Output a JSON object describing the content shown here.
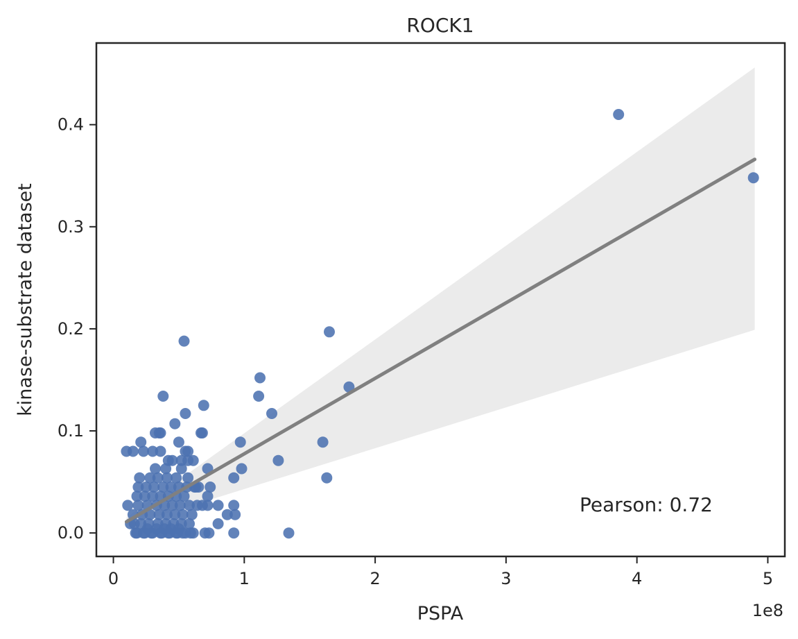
{
  "chart_data": {
    "type": "scatter",
    "title": "ROCK1",
    "xlabel": "PSPA",
    "ylabel": "kinase-substrate dataset",
    "x_offset_label": "1e8",
    "annotation": "Pearson: 0.72",
    "xlim": [
      -0.13,
      5.13
    ],
    "ylim": [
      -0.023,
      0.48
    ],
    "xticks": [
      0,
      1,
      2,
      3,
      4,
      5
    ],
    "yticks": [
      0.0,
      0.1,
      0.2,
      0.3,
      0.4
    ],
    "ytick_labels": [
      "0.0",
      "0.1",
      "0.2",
      "0.3",
      "0.4"
    ],
    "grid": false,
    "colors": {
      "points": "#4c72b0",
      "fit_line": "#808080",
      "band": "#ebebeb",
      "axes": "#262626"
    },
    "regression": {
      "x": [
        0.1,
        4.9
      ],
      "y": [
        0.011,
        0.366
      ],
      "ci_upper_at_max": 0.456,
      "ci_lower_at_max": 0.199
    },
    "series": [
      {
        "x": [
          3.86,
          4.89,
          1.65,
          1.8,
          0.54,
          1.12,
          1.11,
          1.21,
          1.6,
          1.63,
          0.97,
          1.26,
          0.98,
          0.92,
          1.34,
          0.93,
          0.38,
          0.55,
          0.69,
          0.47,
          0.35,
          0.36,
          0.32,
          0.67,
          0.68,
          0.5,
          0.21,
          0.1,
          0.15,
          0.23,
          0.3,
          0.36,
          0.55,
          0.57,
          0.61,
          0.42,
          0.45,
          0.52,
          0.57,
          0.72,
          0.32,
          0.4,
          0.52,
          0.62,
          0.2,
          0.28,
          0.34,
          0.41,
          0.48,
          0.57,
          0.65,
          0.74,
          0.19,
          0.25,
          0.31,
          0.38,
          0.44,
          0.5,
          0.56,
          0.63,
          0.11,
          0.18,
          0.24,
          0.3,
          0.36,
          0.42,
          0.48,
          0.54,
          0.68,
          0.72,
          0.8,
          0.87,
          0.92,
          0.13,
          0.19,
          0.26,
          0.33,
          0.39,
          0.45,
          0.51,
          0.58,
          0.64,
          0.72,
          0.15,
          0.22,
          0.28,
          0.35,
          0.41,
          0.47,
          0.53,
          0.6,
          0.16,
          0.21,
          0.27,
          0.34,
          0.4,
          0.46,
          0.52,
          0.58,
          0.73,
          0.8,
          0.92,
          0.17,
          0.24,
          0.3,
          0.37,
          0.43,
          0.49,
          0.55,
          0.61,
          0.7,
          0.18,
          0.23,
          0.29,
          0.36,
          0.42,
          0.48,
          0.53,
          0.59,
          0.26,
          0.33,
          0.39,
          0.44,
          0.5
        ],
        "y": [
          0.41,
          0.348,
          0.197,
          0.143,
          0.188,
          0.152,
          0.134,
          0.117,
          0.089,
          0.054,
          0.089,
          0.071,
          0.063,
          0.054,
          0.0,
          0.018,
          0.134,
          0.117,
          0.125,
          0.107,
          0.098,
          0.098,
          0.098,
          0.098,
          0.098,
          0.089,
          0.089,
          0.08,
          0.08,
          0.08,
          0.08,
          0.08,
          0.08,
          0.08,
          0.071,
          0.071,
          0.071,
          0.071,
          0.071,
          0.063,
          0.063,
          0.063,
          0.063,
          0.045,
          0.054,
          0.054,
          0.054,
          0.054,
          0.054,
          0.054,
          0.045,
          0.045,
          0.045,
          0.045,
          0.045,
          0.045,
          0.045,
          0.045,
          0.045,
          0.045,
          0.027,
          0.036,
          0.036,
          0.036,
          0.036,
          0.036,
          0.036,
          0.036,
          0.027,
          0.036,
          0.027,
          0.018,
          0.027,
          0.009,
          0.027,
          0.027,
          0.027,
          0.027,
          0.027,
          0.027,
          0.027,
          0.027,
          0.027,
          0.018,
          0.018,
          0.018,
          0.018,
          0.018,
          0.018,
          0.018,
          0.018,
          0.009,
          0.009,
          0.009,
          0.009,
          0.009,
          0.009,
          0.009,
          0.009,
          0.0,
          0.009,
          0.0,
          0.0,
          0.0,
          0.0,
          0.0,
          0.0,
          0.0,
          0.0,
          0.0,
          0.0,
          0.0,
          0.0,
          0.0,
          0.0,
          0.0,
          0.0,
          0.0,
          0.0,
          0.004,
          0.004,
          0.004,
          0.004,
          0.004
        ]
      }
    ]
  }
}
